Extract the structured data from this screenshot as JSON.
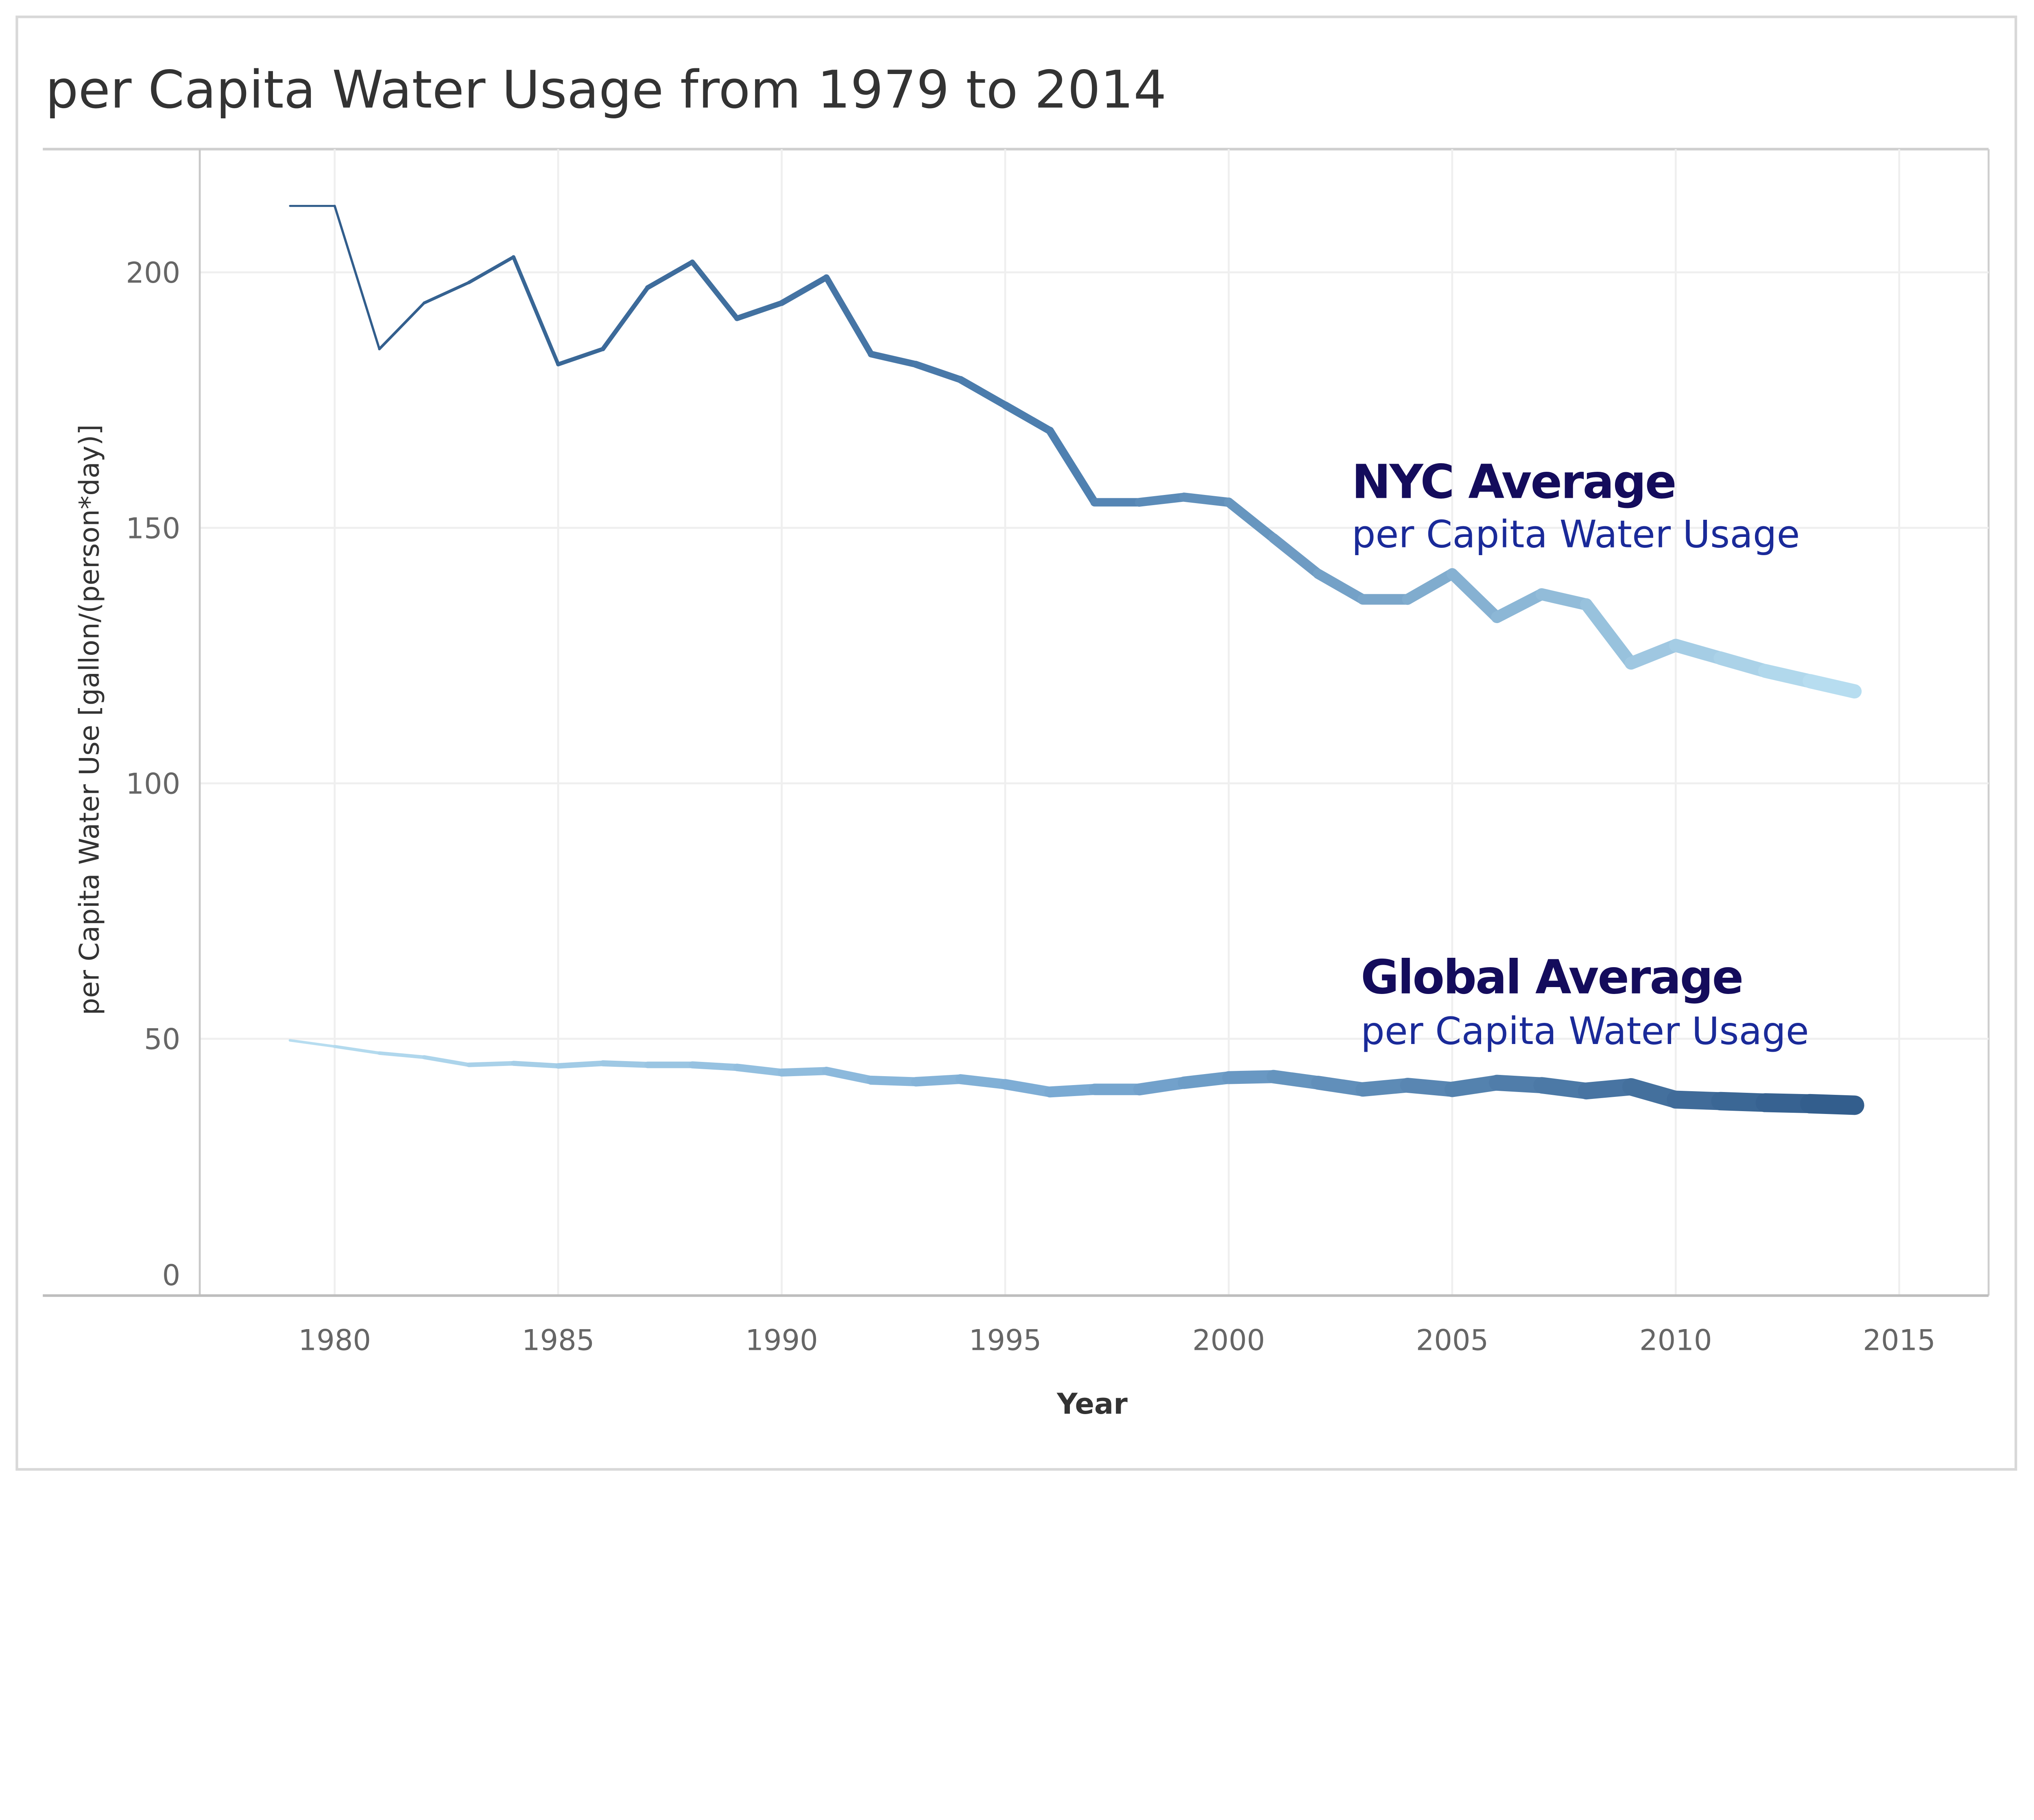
{
  "chart_data": {
    "type": "line",
    "title": "per Capita Water Usage from 1979 to 2014",
    "xlabel": "Year",
    "ylabel": "per Capita Water Use [gallon/(person*day)]",
    "xlim": [
      1977,
      2017
    ],
    "ylim": [
      0,
      220
    ],
    "x_ticks": [
      1980,
      1985,
      1990,
      1995,
      2000,
      2005,
      2010,
      2015
    ],
    "y_ticks": [
      0,
      50,
      100,
      150,
      200
    ],
    "grid": true,
    "x": [
      1979,
      1980,
      1981,
      1982,
      1983,
      1984,
      1985,
      1986,
      1987,
      1988,
      1989,
      1990,
      1991,
      1992,
      1993,
      1994,
      1995,
      1996,
      1997,
      1998,
      1999,
      2000,
      2001,
      2002,
      2003,
      2004,
      2005,
      2006,
      2007,
      2008,
      2009,
      2010,
      2011,
      2012,
      2013,
      2014
    ],
    "series": [
      {
        "name": "NYC Average",
        "subtitle": "per Capita Water Usage",
        "values": [
          213,
          213,
          185,
          194,
          198,
          203,
          182,
          185,
          197,
          202,
          191,
          194,
          199,
          184,
          182,
          179,
          174,
          169,
          155,
          155,
          156,
          155,
          148,
          141,
          136,
          136,
          141,
          132.5,
          137,
          135,
          123.5,
          127,
          124.5,
          122,
          120,
          118
        ],
        "color_start": "#2f5b8a",
        "color_mid": "#4f80b0",
        "color_end": "#b7ddf0"
      },
      {
        "name": "Global Average",
        "subtitle": "per Capita Water Usage",
        "values": [
          49.7,
          48.5,
          47.2,
          46.4,
          44.9,
          45.2,
          44.7,
          45.2,
          44.9,
          44.9,
          44.4,
          43.4,
          43.7,
          41.9,
          41.6,
          42.1,
          41.1,
          39.6,
          40.1,
          40.1,
          41.4,
          42.4,
          42.6,
          41.4,
          40.1,
          40.9,
          40.1,
          41.4,
          40.9,
          39.8,
          40.6,
          38.1,
          37.8,
          37.5,
          37.3,
          37
        ],
        "color_start": "#b7ddf0",
        "color_mid": "#7aaad3",
        "color_end": "#335e8d"
      }
    ],
    "label_color": "#140c5c",
    "subtitle_color": "#1a2a99"
  }
}
